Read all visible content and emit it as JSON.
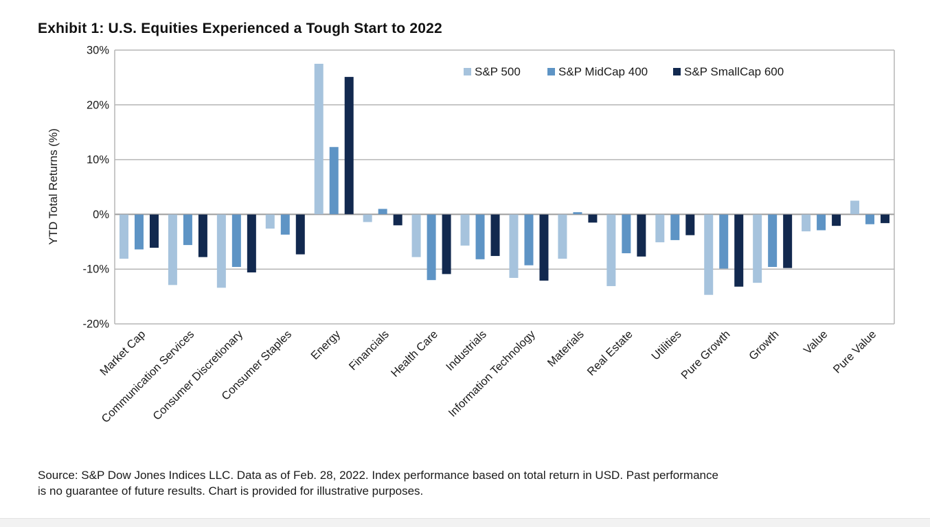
{
  "title": "Exhibit 1: U.S. Equities Experienced a Tough Start to 2022",
  "source_note": {
    "lines": [
      "Source: S&P Dow Jones Indices LLC. Data as of Feb. 28, 2022. Index performance based on total return in USD. Past performance",
      "is no guarantee of future results. Chart is provided for illustrative purposes."
    ]
  },
  "chart_data": {
    "type": "bar",
    "title": "Exhibit 1: U.S. Equities Experienced a Tough Start to 2022",
    "ylabel": "YTD Total Returns (%)",
    "xlabel": "",
    "ylim": [
      -20,
      30
    ],
    "grid": true,
    "legend_position": "top-right-inside",
    "y_ticks": [
      {
        "value": 30,
        "label": "30%"
      },
      {
        "value": 20,
        "label": "20%"
      },
      {
        "value": 10,
        "label": "10%"
      },
      {
        "value": 0,
        "label": "0%"
      },
      {
        "value": -10,
        "label": "-10%"
      },
      {
        "value": -20,
        "label": "-20%"
      }
    ],
    "categories": [
      "Market Cap",
      "Communication Services",
      "Consumer Discretionary",
      "Consumer Staples",
      "Energy",
      "Financials",
      "Health Care",
      "Industrials",
      "Information Technology",
      "Materials",
      "Real Estate",
      "Utilities",
      "Pure Growth",
      "Growth",
      "Value",
      "Pure Value"
    ],
    "series": [
      {
        "name": "S&P 500",
        "color": "#a6c3dd",
        "values": [
          -8.1,
          -12.9,
          -13.4,
          -2.6,
          27.5,
          -1.4,
          -7.8,
          -5.7,
          -11.6,
          -8.1,
          -13.1,
          -5.1,
          -14.7,
          -12.5,
          -3.1,
          2.5
        ]
      },
      {
        "name": "S&P MidCap 400",
        "color": "#5e94c5",
        "values": [
          -6.4,
          -5.6,
          -9.6,
          -3.7,
          12.3,
          1.0,
          -12.0,
          -8.2,
          -9.3,
          0.4,
          -7.1,
          -4.7,
          -9.9,
          -9.6,
          -2.9,
          -1.8
        ]
      },
      {
        "name": "S&P SmallCap 600",
        "color": "#12294f",
        "values": [
          -6.1,
          -7.8,
          -10.6,
          -7.3,
          25.1,
          -2.0,
          -10.9,
          -7.6,
          -12.1,
          -1.5,
          -7.7,
          -3.8,
          -13.2,
          -9.8,
          -2.1,
          -1.6
        ]
      }
    ]
  },
  "colors": {
    "gridline": "#b5b5b5",
    "zero_line": "#9c9c9c",
    "plot_border": "#b5b5b5",
    "text": "#1a1a1a",
    "footer_strip": "#f2f2f2"
  }
}
